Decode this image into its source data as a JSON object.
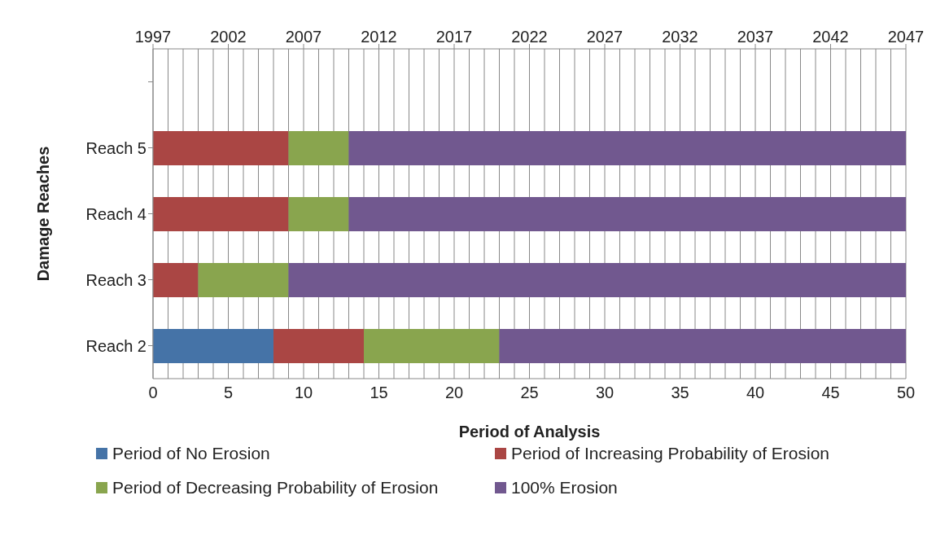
{
  "chart_data": {
    "type": "bar",
    "orientation": "horizontal",
    "stacked": true,
    "categories": [
      null,
      "Reach 5",
      "Reach 4",
      "Reach 3",
      "Reach 2"
    ],
    "series": [
      {
        "name": "Period of No Erosion",
        "color": "#4573a7",
        "values": [
          null,
          0,
          0,
          0,
          8
        ]
      },
      {
        "name": "Period of Increasing Probability of Erosion",
        "color": "#aa4644",
        "values": [
          null,
          9,
          9,
          3,
          6
        ]
      },
      {
        "name": "Period of Decreasing Probability of Erosion",
        "color": "#89a54e",
        "values": [
          null,
          4,
          4,
          6,
          9
        ]
      },
      {
        "name": "100% Erosion",
        "color": "#71588f",
        "values": [
          null,
          37,
          37,
          41,
          27
        ]
      }
    ],
    "xlim": [
      0,
      50
    ],
    "xticks": [
      0,
      {
        "value": 1,
        "label": null
      },
      {
        "value": 2,
        "label": null
      },
      {
        "value": 3,
        "label": null
      },
      {
        "value": 4,
        "label": null
      },
      5,
      {
        "value": 6,
        "label": null
      },
      {
        "value": 7,
        "label": null
      },
      {
        "value": 8,
        "label": null
      },
      {
        "value": 9,
        "label": null
      },
      10,
      {
        "value": 11,
        "label": null
      },
      {
        "value": 12,
        "label": null
      },
      {
        "value": 13,
        "label": null
      },
      {
        "value": 14,
        "label": null
      },
      15,
      {
        "value": 16,
        "label": null
      },
      {
        "value": 17,
        "label": null
      },
      {
        "value": 18,
        "label": null
      },
      {
        "value": 19,
        "label": null
      },
      20,
      {
        "value": 21,
        "label": null
      },
      {
        "value": 22,
        "label": null
      },
      {
        "value": 23,
        "label": null
      },
      {
        "value": 24,
        "label": null
      },
      25,
      {
        "value": 26,
        "label": null
      },
      {
        "value": 27,
        "label": null
      },
      {
        "value": 28,
        "label": null
      },
      {
        "value": 29,
        "label": null
      },
      30,
      {
        "value": 31,
        "label": null
      },
      {
        "value": 32,
        "label": null
      },
      {
        "value": 33,
        "label": null
      },
      {
        "value": 34,
        "label": null
      },
      35,
      {
        "value": 36,
        "label": null
      },
      {
        "value": 37,
        "label": null
      },
      {
        "value": 38,
        "label": null
      },
      {
        "value": 39,
        "label": null
      },
      40,
      {
        "value": 41,
        "label": null
      },
      {
        "value": 42,
        "label": null
      },
      {
        "value": 43,
        "label": null
      },
      {
        "value": 44,
        "label": null
      },
      45,
      {
        "value": 46,
        "label": null
      },
      {
        "value": 47,
        "label": null
      },
      {
        "value": 48,
        "label": null
      },
      {
        "value": 49,
        "label": null
      },
      50
    ],
    "x2lim": [
      1997,
      2047
    ],
    "x2ticks": [
      1997,
      2002,
      2007,
      2012,
      2017,
      2022,
      2027,
      2032,
      2037,
      2042,
      2047
    ],
    "xlabel": "Period of Analysis",
    "ylabel": "Damage Reaches",
    "grid": "x",
    "legend": "bottom"
  }
}
